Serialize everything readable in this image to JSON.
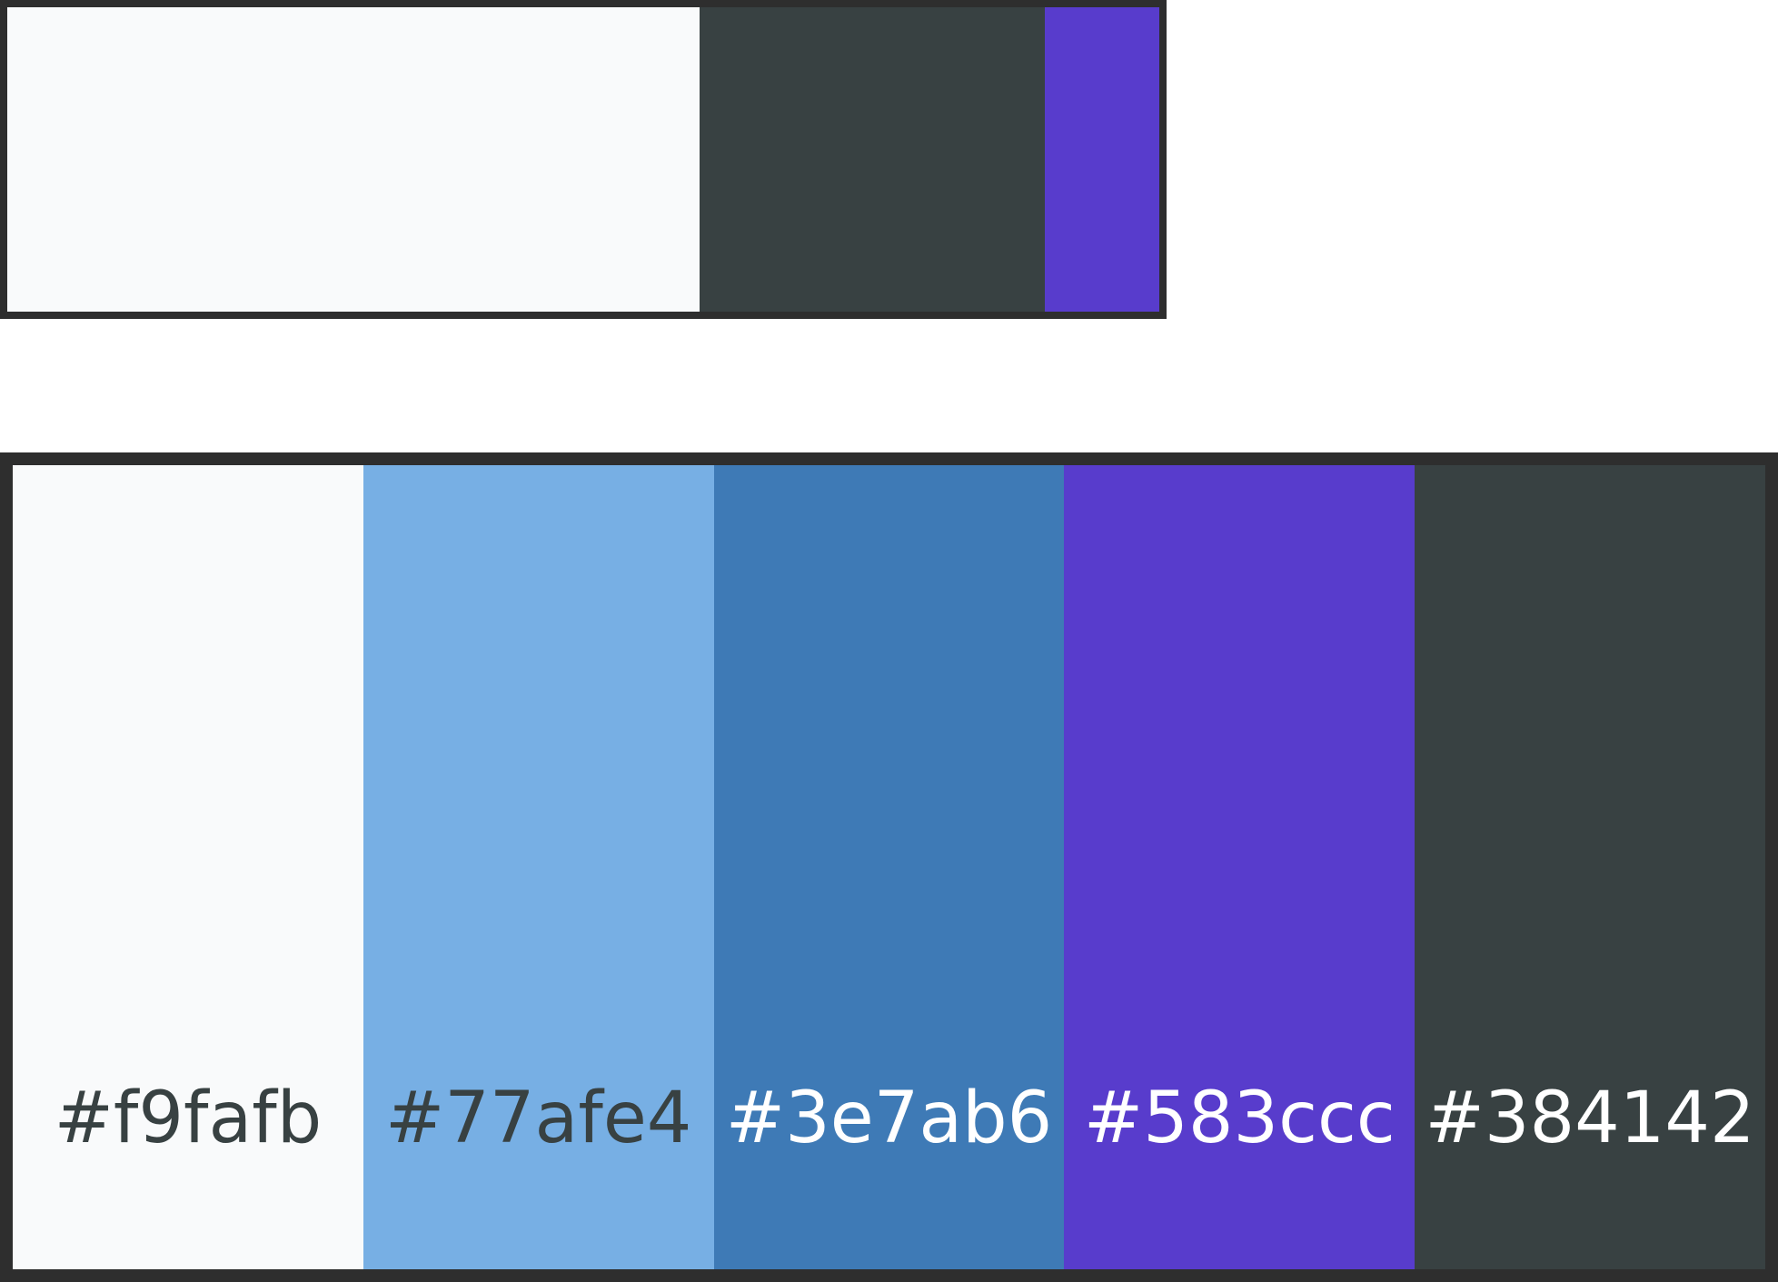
{
  "ratio_bar": {
    "segments": [
      {
        "color": "#f9fafb"
      },
      {
        "color": "#384142"
      },
      {
        "color": "#583ccc"
      }
    ]
  },
  "palette": {
    "swatches": [
      {
        "color": "#f9fafb",
        "label": "#f9fafb",
        "text_color": "#384142"
      },
      {
        "color": "#77afe4",
        "label": "#77afe4",
        "text_color": "#384142"
      },
      {
        "color": "#3e7ab6",
        "label": "#3e7ab6",
        "text_color": "#ffffff"
      },
      {
        "color": "#583ccc",
        "label": "#583ccc",
        "text_color": "#ffffff"
      },
      {
        "color": "#384142",
        "label": "#384142",
        "text_color": "#ffffff"
      }
    ]
  }
}
